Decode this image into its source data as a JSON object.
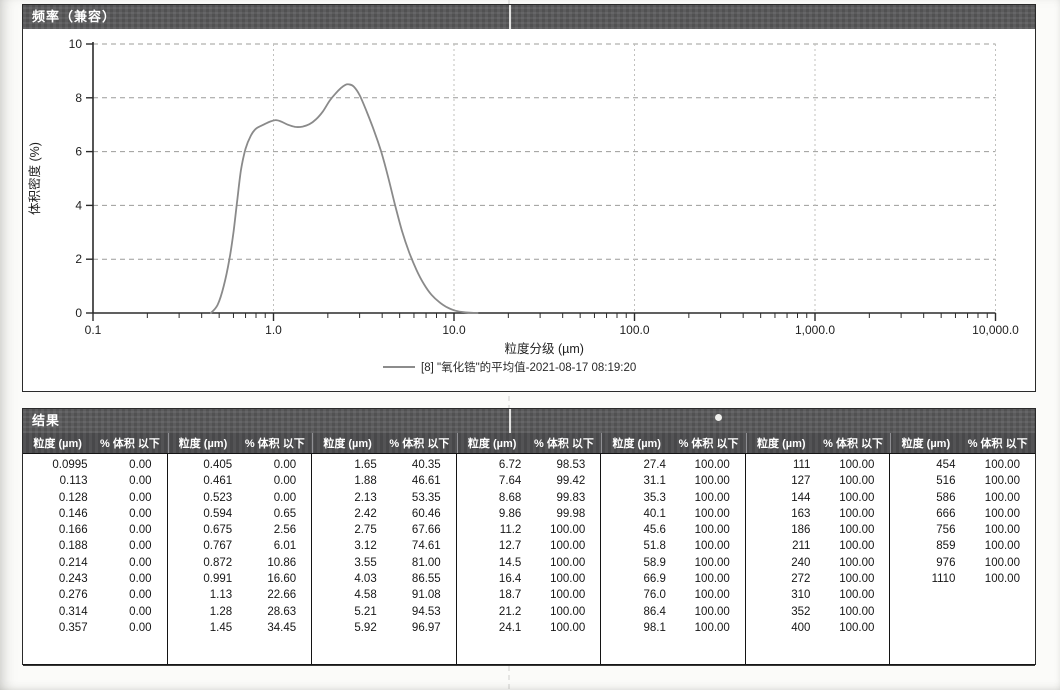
{
  "frequency_panel": {
    "title": "频率（兼容）"
  },
  "results_panel": {
    "title": "结果",
    "col_header_size": "粒度 (µm)",
    "col_header_pct": "% 体积 以下",
    "groups": [
      {
        "rows": [
          [
            "0.0995",
            "0.00"
          ],
          [
            "0.113",
            "0.00"
          ],
          [
            "0.128",
            "0.00"
          ],
          [
            "0.146",
            "0.00"
          ],
          [
            "0.166",
            "0.00"
          ],
          [
            "0.188",
            "0.00"
          ],
          [
            "0.214",
            "0.00"
          ],
          [
            "0.243",
            "0.00"
          ],
          [
            "0.276",
            "0.00"
          ],
          [
            "0.314",
            "0.00"
          ],
          [
            "0.357",
            "0.00"
          ]
        ]
      },
      {
        "rows": [
          [
            "0.405",
            "0.00"
          ],
          [
            "0.461",
            "0.00"
          ],
          [
            "0.523",
            "0.00"
          ],
          [
            "0.594",
            "0.65"
          ],
          [
            "0.675",
            "2.56"
          ],
          [
            "0.767",
            "6.01"
          ],
          [
            "0.872",
            "10.86"
          ],
          [
            "0.991",
            "16.60"
          ],
          [
            "1.13",
            "22.66"
          ],
          [
            "1.28",
            "28.63"
          ],
          [
            "1.45",
            "34.45"
          ]
        ]
      },
      {
        "rows": [
          [
            "1.65",
            "40.35"
          ],
          [
            "1.88",
            "46.61"
          ],
          [
            "2.13",
            "53.35"
          ],
          [
            "2.42",
            "60.46"
          ],
          [
            "2.75",
            "67.66"
          ],
          [
            "3.12",
            "74.61"
          ],
          [
            "3.55",
            "81.00"
          ],
          [
            "4.03",
            "86.55"
          ],
          [
            "4.58",
            "91.08"
          ],
          [
            "5.21",
            "94.53"
          ],
          [
            "5.92",
            "96.97"
          ]
        ]
      },
      {
        "rows": [
          [
            "6.72",
            "98.53"
          ],
          [
            "7.64",
            "99.42"
          ],
          [
            "8.68",
            "99.83"
          ],
          [
            "9.86",
            "99.98"
          ],
          [
            "11.2",
            "100.00"
          ],
          [
            "12.7",
            "100.00"
          ],
          [
            "14.5",
            "100.00"
          ],
          [
            "16.4",
            "100.00"
          ],
          [
            "18.7",
            "100.00"
          ],
          [
            "21.2",
            "100.00"
          ],
          [
            "24.1",
            "100.00"
          ]
        ]
      },
      {
        "rows": [
          [
            "27.4",
            "100.00"
          ],
          [
            "31.1",
            "100.00"
          ],
          [
            "35.3",
            "100.00"
          ],
          [
            "40.1",
            "100.00"
          ],
          [
            "45.6",
            "100.00"
          ],
          [
            "51.8",
            "100.00"
          ],
          [
            "58.9",
            "100.00"
          ],
          [
            "66.9",
            "100.00"
          ],
          [
            "76.0",
            "100.00"
          ],
          [
            "86.4",
            "100.00"
          ],
          [
            "98.1",
            "100.00"
          ]
        ]
      },
      {
        "rows": [
          [
            "111",
            "100.00"
          ],
          [
            "127",
            "100.00"
          ],
          [
            "144",
            "100.00"
          ],
          [
            "163",
            "100.00"
          ],
          [
            "186",
            "100.00"
          ],
          [
            "211",
            "100.00"
          ],
          [
            "240",
            "100.00"
          ],
          [
            "272",
            "100.00"
          ],
          [
            "310",
            "100.00"
          ],
          [
            "352",
            "100.00"
          ],
          [
            "400",
            "100.00"
          ]
        ]
      },
      {
        "rows": [
          [
            "454",
            "100.00"
          ],
          [
            "516",
            "100.00"
          ],
          [
            "586",
            "100.00"
          ],
          [
            "666",
            "100.00"
          ],
          [
            "756",
            "100.00"
          ],
          [
            "859",
            "100.00"
          ],
          [
            "976",
            "100.00"
          ],
          [
            "1110",
            "100.00"
          ]
        ]
      }
    ]
  },
  "chart_data": {
    "type": "line",
    "title": "频率（兼容）",
    "xlabel": "粒度分级 (µm)",
    "ylabel": "体积密度 (%)",
    "x_scale": "log",
    "xlim": [
      0.1,
      10000
    ],
    "ylim": [
      0,
      10
    ],
    "y_ticks": [
      0,
      2,
      4,
      6,
      8,
      10
    ],
    "x_ticks": [
      0.1,
      1,
      10,
      100,
      1000,
      10000
    ],
    "x_tick_labels": [
      "0.1",
      "1.0",
      "10.0",
      "100.0",
      "1,000.0",
      "10,000.0"
    ],
    "grid": true,
    "legend_position": "bottom-center",
    "legend_label": "[8] \"氧化锆\"的平均值-2021-08-17 08:19:20",
    "series": [
      {
        "name": "[8] \"氧化锆\"的平均值-2021-08-17 08:19:20",
        "color": "#8a8a8a",
        "points": [
          [
            0.45,
            0.0
          ],
          [
            0.49,
            0.3
          ],
          [
            0.53,
            1.0
          ],
          [
            0.57,
            2.0
          ],
          [
            0.6,
            3.0
          ],
          [
            0.63,
            4.2
          ],
          [
            0.66,
            5.3
          ],
          [
            0.7,
            6.1
          ],
          [
            0.75,
            6.6
          ],
          [
            0.8,
            6.85
          ],
          [
            0.88,
            7.0
          ],
          [
            0.96,
            7.12
          ],
          [
            1.03,
            7.17
          ],
          [
            1.1,
            7.12
          ],
          [
            1.2,
            7.0
          ],
          [
            1.32,
            6.92
          ],
          [
            1.45,
            6.93
          ],
          [
            1.58,
            7.02
          ],
          [
            1.72,
            7.2
          ],
          [
            1.88,
            7.5
          ],
          [
            2.05,
            7.9
          ],
          [
            2.2,
            8.15
          ],
          [
            2.35,
            8.35
          ],
          [
            2.5,
            8.48
          ],
          [
            2.62,
            8.5
          ],
          [
            2.78,
            8.42
          ],
          [
            3.0,
            8.1
          ],
          [
            3.3,
            7.45
          ],
          [
            3.62,
            6.75
          ],
          [
            3.95,
            6.0
          ],
          [
            4.3,
            5.1
          ],
          [
            4.7,
            4.05
          ],
          [
            5.15,
            3.05
          ],
          [
            5.65,
            2.25
          ],
          [
            6.2,
            1.6
          ],
          [
            6.8,
            1.08
          ],
          [
            7.5,
            0.68
          ],
          [
            8.3,
            0.4
          ],
          [
            9.1,
            0.22
          ],
          [
            10.0,
            0.1
          ],
          [
            11.0,
            0.04
          ],
          [
            12.2,
            0.01
          ],
          [
            13.5,
            0.0
          ]
        ]
      }
    ]
  }
}
